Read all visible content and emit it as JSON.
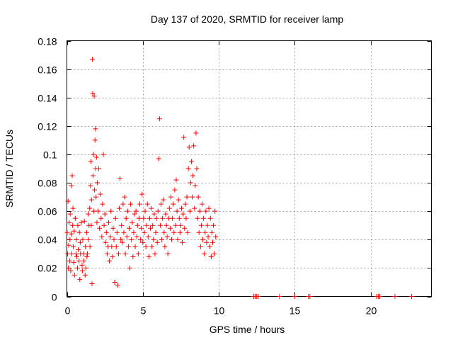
{
  "chart_data": {
    "type": "scatter",
    "title": "Day 137 of 2020, SRMTID for receiver lamp",
    "xlabel": "GPS time / hours",
    "ylabel": "SRMTID / TECUs",
    "xlim": [
      0,
      24
    ],
    "ylim": [
      0,
      0.18
    ],
    "xticks": [
      0,
      5,
      10,
      15,
      20
    ],
    "xtick_labels": [
      "0",
      "5",
      "10",
      "15",
      "20"
    ],
    "yticks": [
      0,
      0.02,
      0.04,
      0.06,
      0.08,
      0.1,
      0.12,
      0.14,
      0.16,
      0.18
    ],
    "ytick_labels": [
      "0",
      "0.02",
      "0.04",
      "0.06",
      "0.08",
      "0.1",
      "0.12",
      "0.14",
      "0.16",
      "0.18"
    ],
    "grid": true,
    "marker": "+",
    "color": "#ff0000",
    "series": [
      {
        "name": "SRMTID",
        "points": [
          [
            0.02,
            0.045
          ],
          [
            0.05,
            0.03
          ],
          [
            0.08,
            0.067
          ],
          [
            0.1,
            0.02
          ],
          [
            0.12,
            0.036
          ],
          [
            0.15,
            0.052
          ],
          [
            0.18,
            0.025
          ],
          [
            0.2,
            0.04
          ],
          [
            0.22,
            0.058
          ],
          [
            0.25,
            0.018
          ],
          [
            0.28,
            0.044
          ],
          [
            0.3,
            0.078
          ],
          [
            0.32,
            0.03
          ],
          [
            0.35,
            0.085
          ],
          [
            0.38,
            0.05
          ],
          [
            0.4,
            0.062
          ],
          [
            0.42,
            0.035
          ],
          [
            0.45,
            0.024
          ],
          [
            0.48,
            0.046
          ],
          [
            0.5,
            0.015
          ],
          [
            0.55,
            0.055
          ],
          [
            0.6,
            0.03
          ],
          [
            0.62,
            0.04
          ],
          [
            0.65,
            0.028
          ],
          [
            0.7,
            0.02
          ],
          [
            0.72,
            0.05
          ],
          [
            0.75,
            0.033
          ],
          [
            0.8,
            0.025
          ],
          [
            0.82,
            0.045
          ],
          [
            0.85,
            0.012
          ],
          [
            0.88,
            0.038
          ],
          [
            0.9,
            0.03
          ],
          [
            0.95,
            0.052
          ],
          [
            1.0,
            0.022
          ],
          [
            1.02,
            0.018
          ],
          [
            1.05,
            0.04
          ],
          [
            1.1,
            0.03
          ],
          [
            1.12,
            0.025
          ],
          [
            1.15,
            0.053
          ],
          [
            1.2,
            0.015
          ],
          [
            1.22,
            0.035
          ],
          [
            1.25,
            0.02
          ],
          [
            1.3,
            0.045
          ],
          [
            1.32,
            0.028
          ],
          [
            1.35,
            0.03
          ],
          [
            1.4,
            0.058
          ],
          [
            1.42,
            0.04
          ],
          [
            1.45,
            0.05
          ],
          [
            1.5,
            0.062
          ],
          [
            1.52,
            0.035
          ],
          [
            1.55,
            0.078
          ],
          [
            1.58,
            0.095
          ],
          [
            1.6,
            0.05
          ],
          [
            1.62,
            0.068
          ],
          [
            1.65,
            0.009
          ],
          [
            1.68,
            0.167
          ],
          [
            1.7,
            0.143
          ],
          [
            1.72,
            0.085
          ],
          [
            1.75,
            0.1
          ],
          [
            1.78,
            0.06
          ],
          [
            1.8,
            0.141
          ],
          [
            1.82,
            0.075
          ],
          [
            1.85,
            0.11
          ],
          [
            1.88,
            0.118
          ],
          [
            1.9,
            0.09
          ],
          [
            1.92,
            0.07
          ],
          [
            1.95,
            0.098
          ],
          [
            1.98,
            0.052
          ],
          [
            2.0,
            0.08
          ],
          [
            2.05,
            0.06
          ],
          [
            2.1,
            0.09
          ],
          [
            2.15,
            0.048
          ],
          [
            2.2,
            0.072
          ],
          [
            2.25,
            0.055
          ],
          [
            2.3,
            0.042
          ],
          [
            2.35,
            0.065
          ],
          [
            2.4,
            0.1
          ],
          [
            2.45,
            0.05
          ],
          [
            2.5,
            0.058
          ],
          [
            2.55,
            0.038
          ],
          [
            2.6,
            0.045
          ],
          [
            2.65,
            0.03
          ],
          [
            2.7,
            0.035
          ],
          [
            2.75,
            0.052
          ],
          [
            2.8,
            0.025
          ],
          [
            2.85,
            0.042
          ],
          [
            2.9,
            0.06
          ],
          [
            2.95,
            0.035
          ],
          [
            3.0,
            0.028
          ],
          [
            3.05,
            0.048
          ],
          [
            3.1,
            0.04
          ],
          [
            3.15,
            0.01
          ],
          [
            3.2,
            0.055
          ],
          [
            3.25,
            0.035
          ],
          [
            3.3,
            0.045
          ],
          [
            3.35,
            0.008
          ],
          [
            3.4,
            0.03
          ],
          [
            3.45,
            0.062
          ],
          [
            3.5,
            0.083
          ],
          [
            3.55,
            0.04
          ],
          [
            3.6,
            0.05
          ],
          [
            3.65,
            0.038
          ],
          [
            3.7,
            0.065
          ],
          [
            3.75,
            0.045
          ],
          [
            3.8,
            0.07
          ],
          [
            3.85,
            0.03
          ],
          [
            3.9,
            0.055
          ],
          [
            3.95,
            0.042
          ],
          [
            4.0,
            0.06
          ],
          [
            4.05,
            0.035
          ],
          [
            4.1,
            0.048
          ],
          [
            4.15,
            0.02
          ],
          [
            4.2,
            0.065
          ],
          [
            4.25,
            0.04
          ],
          [
            4.3,
            0.052
          ],
          [
            4.35,
            0.028
          ],
          [
            4.4,
            0.045
          ],
          [
            4.45,
            0.058
          ],
          [
            4.5,
            0.035
          ],
          [
            4.55,
            0.06
          ],
          [
            4.6,
            0.042
          ],
          [
            4.65,
            0.05
          ],
          [
            4.7,
            0.03
          ],
          [
            4.75,
            0.055
          ],
          [
            4.8,
            0.065
          ],
          [
            4.85,
            0.04
          ],
          [
            4.9,
            0.048
          ],
          [
            4.95,
            0.072
          ],
          [
            5.0,
            0.038
          ],
          [
            5.05,
            0.055
          ],
          [
            5.1,
            0.045
          ],
          [
            5.15,
            0.06
          ],
          [
            5.2,
            0.035
          ],
          [
            5.25,
            0.05
          ],
          [
            5.3,
            0.065
          ],
          [
            5.35,
            0.042
          ],
          [
            5.4,
            0.028
          ],
          [
            5.45,
            0.055
          ],
          [
            5.5,
            0.048
          ],
          [
            5.55,
            0.062
          ],
          [
            5.6,
            0.035
          ],
          [
            5.65,
            0.05
          ],
          [
            5.7,
            0.04
          ],
          [
            5.75,
            0.058
          ],
          [
            5.8,
            0.03
          ],
          [
            5.85,
            0.045
          ],
          [
            5.9,
            0.055
          ],
          [
            5.95,
            0.038
          ],
          [
            6.0,
            0.06
          ],
          [
            6.05,
            0.097
          ],
          [
            6.1,
            0.125
          ],
          [
            6.15,
            0.05
          ],
          [
            6.2,
            0.065
          ],
          [
            6.25,
            0.04
          ],
          [
            6.3,
            0.055
          ],
          [
            6.35,
            0.068
          ],
          [
            6.4,
            0.045
          ],
          [
            6.45,
            0.035
          ],
          [
            6.5,
            0.058
          ],
          [
            6.55,
            0.05
          ],
          [
            6.6,
            0.042
          ],
          [
            6.65,
            0.03
          ],
          [
            6.7,
            0.055
          ],
          [
            6.75,
            0.062
          ],
          [
            6.8,
            0.048
          ],
          [
            6.85,
            0.07
          ],
          [
            6.9,
            0.04
          ],
          [
            6.95,
            0.055
          ],
          [
            7.0,
            0.065
          ],
          [
            7.05,
            0.045
          ],
          [
            7.1,
            0.075
          ],
          [
            7.15,
            0.05
          ],
          [
            7.2,
            0.082
          ],
          [
            7.25,
            0.06
          ],
          [
            7.3,
            0.04
          ],
          [
            7.35,
            0.068
          ],
          [
            7.4,
            0.055
          ],
          [
            7.45,
            0.045
          ],
          [
            7.5,
            0.05
          ],
          [
            7.55,
            0.062
          ],
          [
            7.6,
            0.038
          ],
          [
            7.65,
            0.058
          ],
          [
            7.7,
            0.112
          ],
          [
            7.75,
            0.048
          ],
          [
            7.8,
            0.065
          ],
          [
            7.85,
            0.055
          ],
          [
            7.9,
            0.07
          ],
          [
            7.95,
            0.045
          ],
          [
            8.0,
            0.09
          ],
          [
            8.05,
            0.105
          ],
          [
            8.1,
            0.06
          ],
          [
            8.15,
            0.08
          ],
          [
            8.2,
            0.095
          ],
          [
            8.25,
            0.07
          ],
          [
            8.3,
            0.085
          ],
          [
            8.35,
            0.106
          ],
          [
            8.4,
            0.062
          ],
          [
            8.45,
            0.078
          ],
          [
            8.5,
            0.115
          ],
          [
            8.55,
            0.09
          ],
          [
            8.6,
            0.055
          ],
          [
            8.65,
            0.07
          ],
          [
            8.7,
            0.045
          ],
          [
            8.75,
            0.06
          ],
          [
            8.8,
            0.035
          ],
          [
            8.85,
            0.05
          ],
          [
            8.9,
            0.065
          ],
          [
            8.95,
            0.04
          ],
          [
            9.0,
            0.055
          ],
          [
            9.05,
            0.03
          ],
          [
            9.1,
            0.045
          ],
          [
            9.15,
            0.06
          ],
          [
            9.2,
            0.038
          ],
          [
            9.25,
            0.05
          ],
          [
            9.3,
            0.042
          ],
          [
            9.35,
            0.062
          ],
          [
            9.4,
            0.035
          ],
          [
            9.45,
            0.055
          ],
          [
            9.5,
            0.028
          ],
          [
            9.55,
            0.045
          ],
          [
            9.6,
            0.038
          ],
          [
            9.65,
            0.05
          ],
          [
            9.7,
            0.03
          ],
          [
            9.75,
            0.06
          ],
          [
            9.8,
            0.042
          ],
          [
            12.3,
            0.0
          ],
          [
            12.4,
            0.0
          ],
          [
            12.5,
            0.0
          ],
          [
            12.6,
            0.0
          ],
          [
            14.0,
            0.0
          ],
          [
            15.0,
            0.0
          ],
          [
            15.9,
            0.0
          ],
          [
            16.0,
            0.0
          ],
          [
            20.4,
            0.0
          ],
          [
            20.5,
            0.0
          ],
          [
            20.6,
            0.0
          ],
          [
            21.6,
            0.0
          ],
          [
            22.7,
            0.0
          ]
        ]
      }
    ]
  }
}
